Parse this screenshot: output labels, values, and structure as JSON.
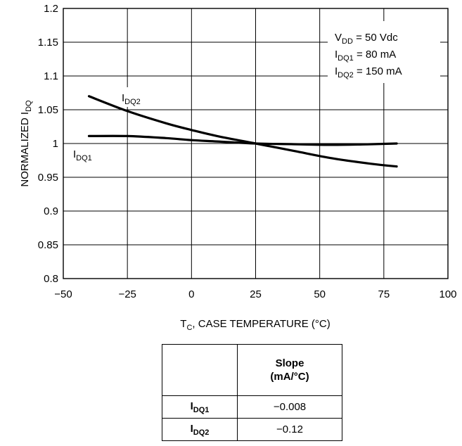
{
  "chart_data": {
    "type": "line",
    "xlabel_main": "T",
    "xlabel_sub": "C",
    "xlabel_rest": ", CASE TEMPERATURE (°C)",
    "ylabel_main": "NORMALIZED I",
    "ylabel_sub": "DQ",
    "xlim": [
      -50,
      100
    ],
    "ylim": [
      0.8,
      1.2
    ],
    "x_ticks": [
      -50,
      -25,
      0,
      25,
      50,
      75,
      100
    ],
    "x_tick_labels": [
      "−50",
      "−25",
      "0",
      "25",
      "50",
      "75",
      "100"
    ],
    "y_ticks": [
      0.8,
      0.85,
      0.9,
      0.95,
      1.0,
      1.05,
      1.1,
      1.15,
      1.2
    ],
    "y_tick_labels": [
      "0.8",
      "0.85",
      "0.9",
      "0.95",
      "1",
      "1.05",
      "1.1",
      "1.15",
      "1.2"
    ],
    "grid": true,
    "legend_lines": [
      {
        "main": "V",
        "sub": "DD",
        "rest": " = 50 Vdc"
      },
      {
        "main": "I",
        "sub": "DQ1",
        "rest": " = 80 mA"
      },
      {
        "main": "I",
        "sub": "DQ2",
        "rest": " = 150 mA"
      }
    ],
    "series": [
      {
        "name_main": "I",
        "name_sub": "DQ1",
        "x": [
          -40,
          -25,
          -10,
          0,
          10,
          25,
          40,
          55,
          70,
          80
        ],
        "y": [
          1.011,
          1.011,
          1.008,
          1.005,
          1.003,
          1.0,
          0.999,
          0.998,
          0.999,
          1.0
        ]
      },
      {
        "name_main": "I",
        "name_sub": "DQ2",
        "x": [
          -40,
          -25,
          -10,
          0,
          10,
          25,
          40,
          55,
          70,
          80
        ],
        "y": [
          1.07,
          1.048,
          1.03,
          1.02,
          1.011,
          1.0,
          0.989,
          0.978,
          0.97,
          0.966
        ]
      }
    ]
  },
  "slope_table": {
    "header_line1": "Slope",
    "header_line2": "(mA/°C)",
    "rows": [
      {
        "label_main": "I",
        "label_sub": "DQ1",
        "value": "−0.008"
      },
      {
        "label_main": "I",
        "label_sub": "DQ2",
        "value": "−0.12"
      }
    ]
  }
}
